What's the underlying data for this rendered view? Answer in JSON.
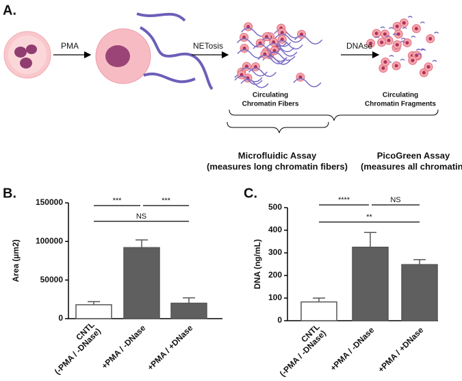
{
  "panel_labels": [
    "A.",
    "B.",
    "C."
  ],
  "schematic": {
    "steps": [
      "PMA",
      "NETosis",
      "DNAse"
    ],
    "captions": [
      [
        "Circulating",
        "Chromatin Fibers"
      ],
      [
        "Circulating",
        "Chromatin Fragments"
      ]
    ],
    "assays": [
      {
        "name": "Microfluidic Assay",
        "note": "(measures long chromatin fibers)"
      },
      {
        "name": "PicoGreen Assay",
        "note": "(measures all chromatin)"
      }
    ]
  },
  "chart_data": [
    {
      "type": "bar",
      "ylabel": "Area (µm2)",
      "categories": [
        [
          "CNTL",
          "(-PMA / -DNase)"
        ],
        [
          "+PMA / -DNase"
        ],
        [
          "+PMA / +DNase"
        ]
      ],
      "values": [
        18000,
        92000,
        20000
      ],
      "errors": [
        4000,
        10000,
        7000
      ],
      "colors": [
        "#ffffff",
        "#5f5f5f",
        "#5f5f5f"
      ],
      "edge_color": "#555555",
      "ylim": [
        0,
        150000
      ],
      "yticks": [
        0,
        50000,
        100000,
        150000
      ],
      "annotations": [
        "***",
        "***",
        "NS"
      ]
    },
    {
      "type": "bar",
      "ylabel": "DNA (ng/mL)",
      "categories": [
        [
          "CNTL",
          "(-PMA / -DNase)"
        ],
        [
          "+PMA / -DNase"
        ],
        [
          "+PMA / +DNase"
        ]
      ],
      "values": [
        83,
        325,
        248
      ],
      "errors": [
        17,
        65,
        22
      ],
      "colors": [
        "#ffffff",
        "#5f5f5f",
        "#5f5f5f"
      ],
      "edge_color": "#555555",
      "ylim": [
        0,
        500
      ],
      "yticks": [
        0,
        100,
        200,
        300,
        400,
        500
      ],
      "annotations": [
        "****",
        "NS",
        "**"
      ]
    }
  ]
}
